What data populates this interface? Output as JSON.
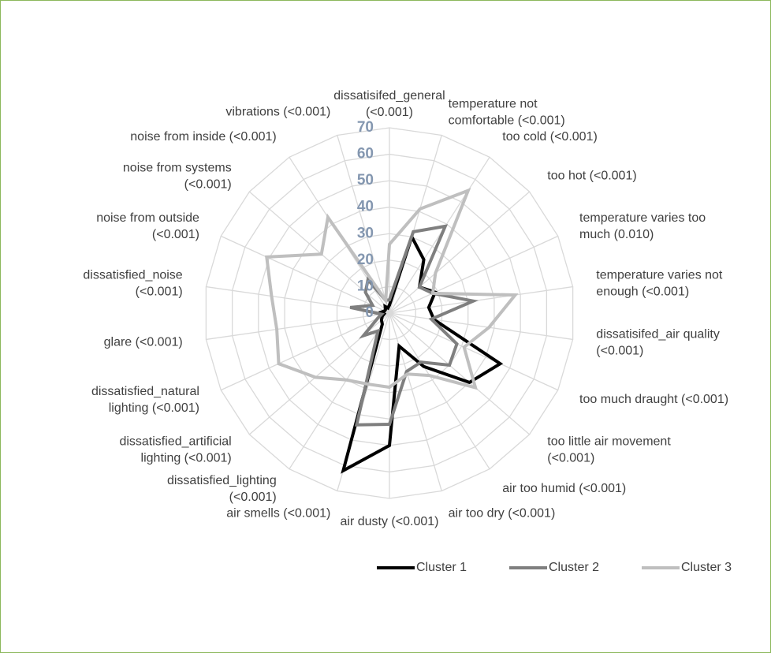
{
  "chart_data": {
    "type": "radar",
    "categories": [
      "dissatisifed_general (<0.001)",
      "temperature not comfortable (<0.001)",
      "too cold (<0.001)",
      "too hot (<0.001)",
      "temperature varies too much (0.010)",
      "temperature varies not enough (<0.001)",
      "dissatisifed_air quality (<0.001)",
      "too much draught (<0.001)",
      "too little air movement (<0.001)",
      "air too humid (<0.001)",
      "air too dry (<0.001)",
      "air dusty (<0.001)",
      "air smells (<0.001)",
      "dissatisfied_lighting (<0.001)",
      "dissatisfied_artificial lighting (<0.001)",
      "dissatisfied_natural lighting (<0.001)",
      "glare (<0.001)",
      "dissatisfied_noise (<0.001)",
      "noise from outside (<0.001)",
      "noise from systems (<0.001)",
      "noise from inside (<0.001)",
      "vibrations (<0.001)"
    ],
    "series": [
      {
        "name": "Cluster 1",
        "color": "#000000",
        "values": [
          3,
          30,
          24,
          15,
          19,
          15,
          17,
          46,
          40,
          24,
          13,
          50,
          62,
          5,
          4,
          3,
          2,
          3,
          2,
          2,
          3,
          2
        ]
      },
      {
        "name": "Cluster 2",
        "color": "#7f7f7f",
        "values": [
          5,
          32,
          39,
          15,
          18,
          32,
          16,
          28,
          30,
          22,
          23,
          42,
          44,
          8,
          13,
          5,
          3,
          15,
          7,
          12,
          15,
          5
        ]
      },
      {
        "name": "Cluster 3",
        "color": "#bfbfbf",
        "values": [
          26,
          41,
          55,
          23,
          18,
          48,
          38,
          31,
          43,
          28,
          24,
          28,
          28,
          30,
          37,
          46,
          43,
          45,
          51,
          34,
          43,
          5
        ]
      }
    ],
    "ylim": [
      0,
      70
    ],
    "yticks": [
      0,
      10,
      20,
      30,
      40,
      50,
      60,
      70
    ],
    "grid": true,
    "legend": "bottom"
  }
}
